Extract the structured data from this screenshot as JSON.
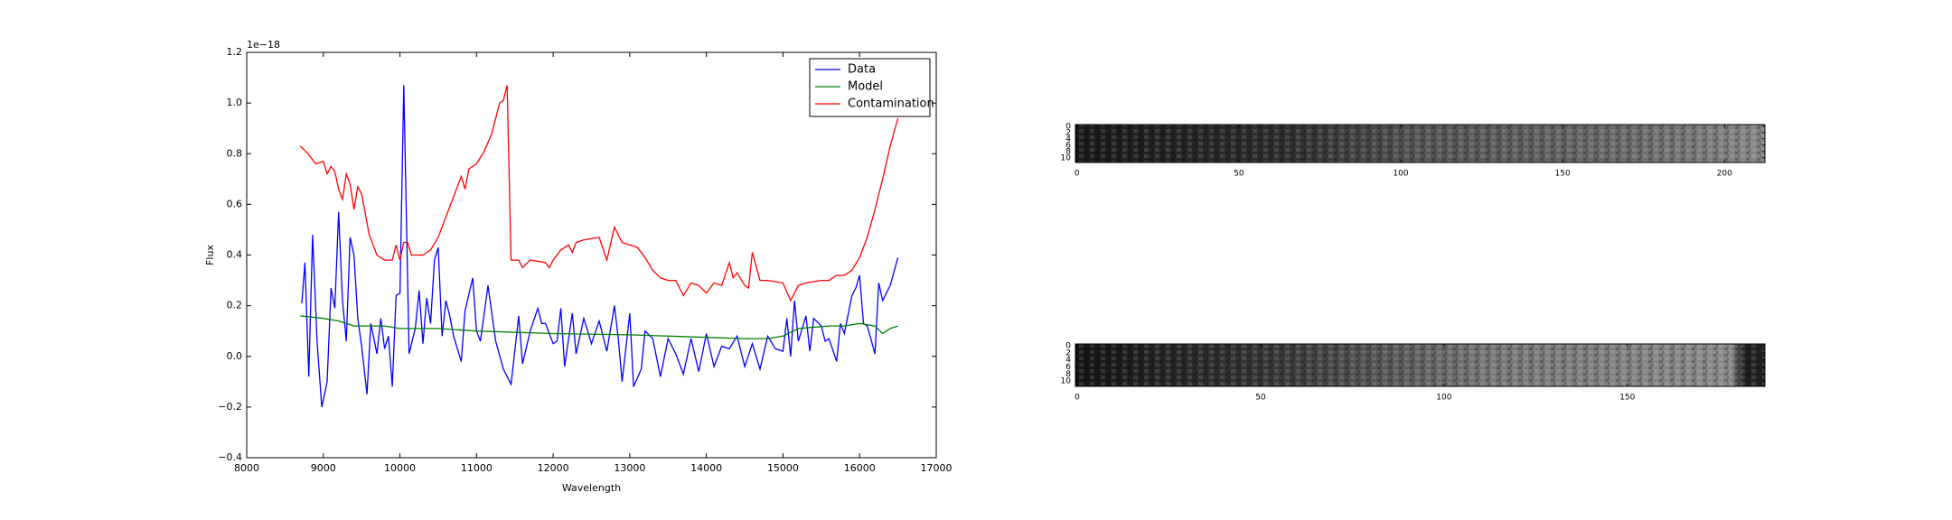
{
  "chart_data": [
    {
      "type": "line",
      "xlabel": "Wavelength",
      "ylabel": "Flux",
      "offset_label": "1e−18",
      "xlim": [
        8000,
        17000
      ],
      "ylim": [
        -0.4,
        1.2
      ],
      "xticks": [
        8000,
        9000,
        10000,
        11000,
        12000,
        13000,
        14000,
        15000,
        16000,
        17000
      ],
      "yticks": [
        {
          "value": -0.4,
          "label": "−0.4"
        },
        {
          "value": -0.2,
          "label": "−0.2"
        },
        {
          "value": 0,
          "label": "0.0"
        },
        0.2,
        0.4,
        0.6,
        0.8,
        {
          "value": 1,
          "label": "1.0"
        },
        1.2
      ],
      "legend": "upper right",
      "series": [
        {
          "name": "Data",
          "color": "#0000ff",
          "x": [
            8720,
            8760,
            8810,
            8860,
            8920,
            8980,
            9050,
            9100,
            9150,
            9200,
            9250,
            9300,
            9350,
            9400,
            9450,
            9500,
            9570,
            9620,
            9700,
            9750,
            9800,
            9850,
            9900,
            9950,
            10000,
            10050,
            10120,
            10200,
            10250,
            10300,
            10350,
            10400,
            10450,
            10500,
            10550,
            10600,
            10650,
            10700,
            10800,
            10850,
            10950,
            11000,
            11050,
            11150,
            11250,
            11350,
            11450,
            11550,
            11600,
            11700,
            11800,
            11850,
            11900,
            12000,
            12050,
            12100,
            12150,
            12250,
            12300,
            12400,
            12500,
            12600,
            12700,
            12800,
            12850,
            12900,
            13000,
            13050,
            13150,
            13200,
            13300,
            13400,
            13500,
            13600,
            13700,
            13800,
            13900,
            14000,
            14100,
            14200,
            14300,
            14400,
            14500,
            14600,
            14700,
            14800,
            14900,
            15000,
            15050,
            15100,
            15150,
            15200,
            15300,
            15350,
            15400,
            15500,
            15550,
            15600,
            15700,
            15750,
            15800,
            15900,
            15950,
            16000,
            16050,
            16100,
            16200,
            16250,
            16300,
            16400,
            16500
          ],
          "values": [
            0.21,
            0.37,
            -0.08,
            0.48,
            0.05,
            -0.2,
            -0.1,
            0.27,
            0.19,
            0.57,
            0.22,
            0.06,
            0.47,
            0.4,
            0.15,
            0.04,
            -0.15,
            0.13,
            0.01,
            0.15,
            0.03,
            0.08,
            -0.12,
            0.24,
            0.25,
            1.07,
            0.01,
            0.11,
            0.26,
            0.05,
            0.23,
            0.13,
            0.38,
            0.43,
            0.08,
            0.22,
            0.16,
            0.08,
            -0.02,
            0.18,
            0.31,
            0.1,
            0.06,
            0.28,
            0.06,
            -0.05,
            -0.11,
            0.16,
            -0.03,
            0.1,
            0.19,
            0.13,
            0.13,
            0.05,
            0.06,
            0.19,
            -0.04,
            0.17,
            0.01,
            0.15,
            0.05,
            0.14,
            0.02,
            0.2,
            0.07,
            -0.1,
            0.17,
            -0.12,
            -0.05,
            0.1,
            0.07,
            -0.08,
            0.07,
            0.01,
            -0.07,
            0.07,
            -0.06,
            0.09,
            -0.04,
            0.04,
            0.03,
            0.08,
            -0.04,
            0.05,
            -0.05,
            0.08,
            0.03,
            0.02,
            0.15,
            0,
            0.22,
            0.06,
            0.16,
            0.02,
            0.15,
            0.12,
            0.06,
            0.07,
            -0.02,
            0.13,
            0.09,
            0.24,
            0.27,
            0.32,
            0.13,
            0.12,
            0.01,
            0.29,
            0.22,
            0.28,
            0.39
          ]
        },
        {
          "name": "Model",
          "color": "#008000",
          "x": [
            8700,
            9000,
            9200,
            9400,
            9800,
            10000,
            10500,
            11000,
            12000,
            13000,
            14000,
            14500,
            14800,
            15000,
            15200,
            15600,
            15800,
            16000,
            16200,
            16300,
            16400,
            16500
          ],
          "values": [
            0.16,
            0.15,
            0.14,
            0.12,
            0.12,
            0.11,
            0.11,
            0.1,
            0.09,
            0.085,
            0.075,
            0.07,
            0.07,
            0.08,
            0.11,
            0.12,
            0.12,
            0.13,
            0.12,
            0.09,
            0.11,
            0.12
          ]
        },
        {
          "name": "Contamination",
          "color": "#ff0000",
          "x": [
            8700,
            8800,
            8900,
            9000,
            9050,
            9100,
            9150,
            9200,
            9250,
            9300,
            9350,
            9400,
            9450,
            9500,
            9600,
            9700,
            9800,
            9900,
            9950,
            10000,
            10050,
            10100,
            10150,
            10300,
            10400,
            10500,
            10600,
            10700,
            10800,
            10850,
            10900,
            11000,
            11100,
            11200,
            11300,
            11350,
            11400,
            11450,
            11550,
            11600,
            11700,
            11900,
            11950,
            12000,
            12100,
            12200,
            12250,
            12300,
            12400,
            12600,
            12700,
            12800,
            12900,
            13000,
            13100,
            13200,
            13300,
            13400,
            13500,
            13600,
            13700,
            13800,
            13900,
            14000,
            14100,
            14200,
            14300,
            14350,
            14400,
            14500,
            14550,
            14600,
            14700,
            14800,
            15000,
            15100,
            15200,
            15300,
            15500,
            15600,
            15700,
            15800,
            15900,
            16000,
            16100,
            16200,
            16300,
            16400,
            16500
          ],
          "values": [
            0.83,
            0.8,
            0.76,
            0.77,
            0.72,
            0.75,
            0.73,
            0.66,
            0.62,
            0.72,
            0.68,
            0.58,
            0.67,
            0.64,
            0.48,
            0.4,
            0.38,
            0.38,
            0.44,
            0.38,
            0.45,
            0.45,
            0.4,
            0.4,
            0.42,
            0.47,
            0.55,
            0.63,
            0.71,
            0.66,
            0.74,
            0.76,
            0.81,
            0.88,
            1,
            1.01,
            1.07,
            0.38,
            0.38,
            0.35,
            0.38,
            0.37,
            0.35,
            0.38,
            0.42,
            0.44,
            0.41,
            0.45,
            0.46,
            0.47,
            0.38,
            0.51,
            0.45,
            0.44,
            0.43,
            0.39,
            0.34,
            0.31,
            0.3,
            0.3,
            0.24,
            0.29,
            0.28,
            0.25,
            0.29,
            0.28,
            0.37,
            0.31,
            0.33,
            0.28,
            0.27,
            0.41,
            0.3,
            0.3,
            0.29,
            0.22,
            0.28,
            0.29,
            0.3,
            0.3,
            0.32,
            0.32,
            0.34,
            0.39,
            0.47,
            0.58,
            0.7,
            0.83,
            0.94
          ]
        }
      ]
    },
    {
      "type": "image",
      "xlim": [
        -0.5,
        212.5
      ],
      "ylim": [
        11.5,
        -0.5
      ],
      "xticks": [
        0,
        50,
        100,
        150,
        200
      ],
      "yticks": [
        0,
        2,
        4,
        6,
        8,
        10
      ]
    },
    {
      "type": "image",
      "xlim": [
        -0.5,
        187.5
      ],
      "ylim": [
        11.5,
        -0.5
      ],
      "xticks": [
        0,
        50,
        100,
        150
      ],
      "yticks": [
        0,
        2,
        4,
        6,
        8,
        10
      ]
    }
  ]
}
